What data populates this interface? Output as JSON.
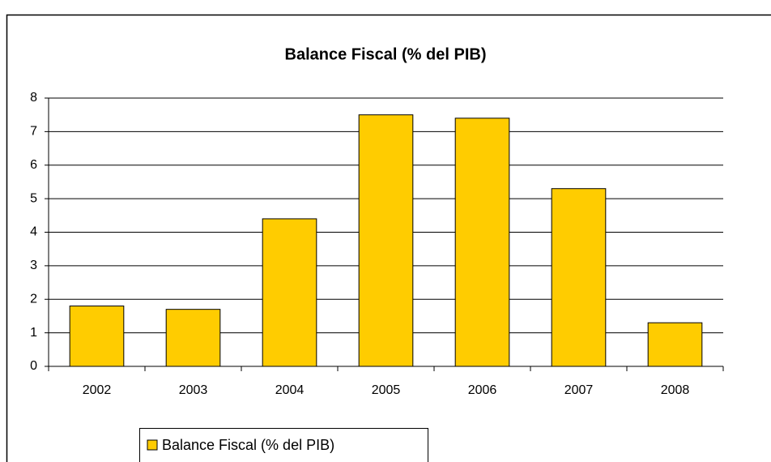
{
  "chart_data": {
    "type": "bar",
    "title": "Balance Fiscal (% del PIB)",
    "categories": [
      "2002",
      "2003",
      "2004",
      "2005",
      "2006",
      "2007",
      "2008"
    ],
    "series": [
      {
        "name": "Balance Fiscal (% del PIB)",
        "color": "#ffcc00",
        "values": [
          1.8,
          1.7,
          4.4,
          7.5,
          7.4,
          5.3,
          1.3
        ]
      }
    ],
    "ylim": [
      0,
      8
    ],
    "yticks": [
      0,
      1,
      2,
      3,
      4,
      5,
      6,
      7,
      8
    ],
    "grid": true,
    "legend": "bottom-left"
  }
}
